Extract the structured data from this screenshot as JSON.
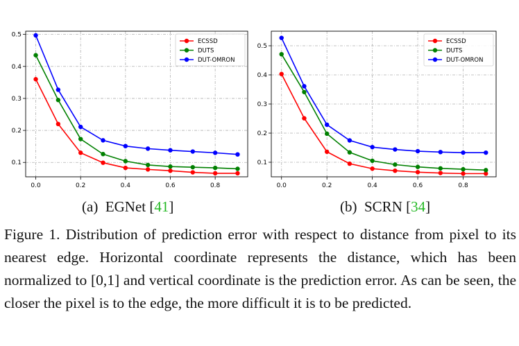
{
  "subcaptions": [
    {
      "label": "(a)",
      "name": "EGNet",
      "ref": "41"
    },
    {
      "label": "(b)",
      "name": "SCRN",
      "ref": "34"
    }
  ],
  "caption": "Figure 1. Distribution of prediction error with respect to distance from pixel to its nearest edge. Horizontal coordinate represents the distance, which has been normalized to [0,1] and vertical coordinate is the prediction error. As can be seen, the closer the pixel is to the edge, the more difficult it is to be predicted.",
  "colors": {
    "ECSSD": "#ff0000",
    "DUTS": "#008000",
    "DUT-OMRON": "#0000ff"
  },
  "chart_data": [
    {
      "type": "line",
      "x": [
        0.0,
        0.1,
        0.2,
        0.3,
        0.4,
        0.5,
        0.6,
        0.7,
        0.8,
        0.9
      ],
      "xticks": [
        "0.0",
        "0.2",
        "0.4",
        "0.6",
        "0.8"
      ],
      "yticks": [
        "0.1",
        "0.2",
        "0.3",
        "0.4",
        "0.5"
      ],
      "xlim": [
        -0.045,
        0.945
      ],
      "ylim": [
        0.055,
        0.51
      ],
      "grid": true,
      "legend": "top-right",
      "series": [
        {
          "name": "ECSSD",
          "values": [
            0.36,
            0.22,
            0.13,
            0.099,
            0.083,
            0.078,
            0.074,
            0.069,
            0.066,
            0.066
          ]
        },
        {
          "name": "DUTS",
          "values": [
            0.435,
            0.295,
            0.173,
            0.126,
            0.104,
            0.092,
            0.087,
            0.085,
            0.083,
            0.08
          ]
        },
        {
          "name": "DUT-OMRON",
          "values": [
            0.497,
            0.327,
            0.211,
            0.169,
            0.151,
            0.143,
            0.138,
            0.134,
            0.13,
            0.125
          ]
        }
      ]
    },
    {
      "type": "line",
      "x": [
        0.0,
        0.1,
        0.2,
        0.3,
        0.4,
        0.5,
        0.6,
        0.7,
        0.8,
        0.9
      ],
      "xticks": [
        "0.0",
        "0.2",
        "0.4",
        "0.6",
        "0.8"
      ],
      "yticks": [
        "0.1",
        "0.2",
        "0.3",
        "0.4",
        "0.5"
      ],
      "xlim": [
        -0.045,
        0.945
      ],
      "ylim": [
        0.05,
        0.55
      ],
      "grid": true,
      "legend": "top-right",
      "series": [
        {
          "name": "ECSSD",
          "values": [
            0.403,
            0.251,
            0.136,
            0.095,
            0.078,
            0.071,
            0.066,
            0.063,
            0.061,
            0.061
          ]
        },
        {
          "name": "DUTS",
          "values": [
            0.471,
            0.341,
            0.198,
            0.134,
            0.105,
            0.092,
            0.084,
            0.079,
            0.076,
            0.073
          ]
        },
        {
          "name": "DUT-OMRON",
          "values": [
            0.527,
            0.361,
            0.229,
            0.175,
            0.152,
            0.144,
            0.138,
            0.135,
            0.133,
            0.133
          ]
        }
      ]
    }
  ]
}
